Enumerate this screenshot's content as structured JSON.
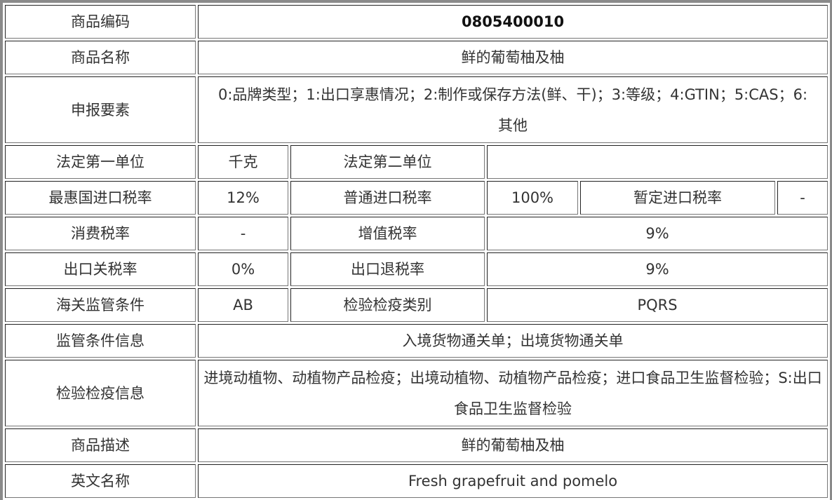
{
  "rows": {
    "code": {
      "label": "商品编码",
      "value": "0805400010"
    },
    "name": {
      "label": "商品名称",
      "value": "鲜的葡萄柚及柚"
    },
    "elements": {
      "label": "申报要素",
      "value": "0:品牌类型；1:出口享惠情况；2:制作或保存方法(鲜、干)；3:等级；4:GTIN；5:CAS；6:其他"
    },
    "units": {
      "label1": "法定第一单位",
      "value1": "千克",
      "label2": "法定第二单位",
      "value2": ""
    },
    "import_tax": {
      "label1": "最惠国进口税率",
      "value1": "12%",
      "label2": "普通进口税率",
      "value2": "100%",
      "label3": "暂定进口税率",
      "value3": "-"
    },
    "consumption": {
      "label1": "消费税率",
      "value1": "-",
      "label2": "增值税率",
      "value2": "9%"
    },
    "export": {
      "label1": "出口关税率",
      "value1": "0%",
      "label2": "出口退税率",
      "value2": "9%"
    },
    "customs": {
      "label1": "海关监管条件",
      "value1": "AB",
      "label2": "检验检疫类别",
      "value2": "PQRS"
    },
    "supervision": {
      "label": "监管条件信息",
      "value": "入境货物通关单；出境货物通关单"
    },
    "inspection": {
      "label": "检验检疫信息",
      "value": "进境动植物、动植物产品检疫；出境动植物、动植物产品检疫；进口食品卫生监督检验；S:出口食品卫生监督检验"
    },
    "description": {
      "label": "商品描述",
      "value": "鲜的葡萄柚及柚"
    },
    "english": {
      "label": "英文名称",
      "value": "Fresh grapefruit and pomelo"
    }
  }
}
